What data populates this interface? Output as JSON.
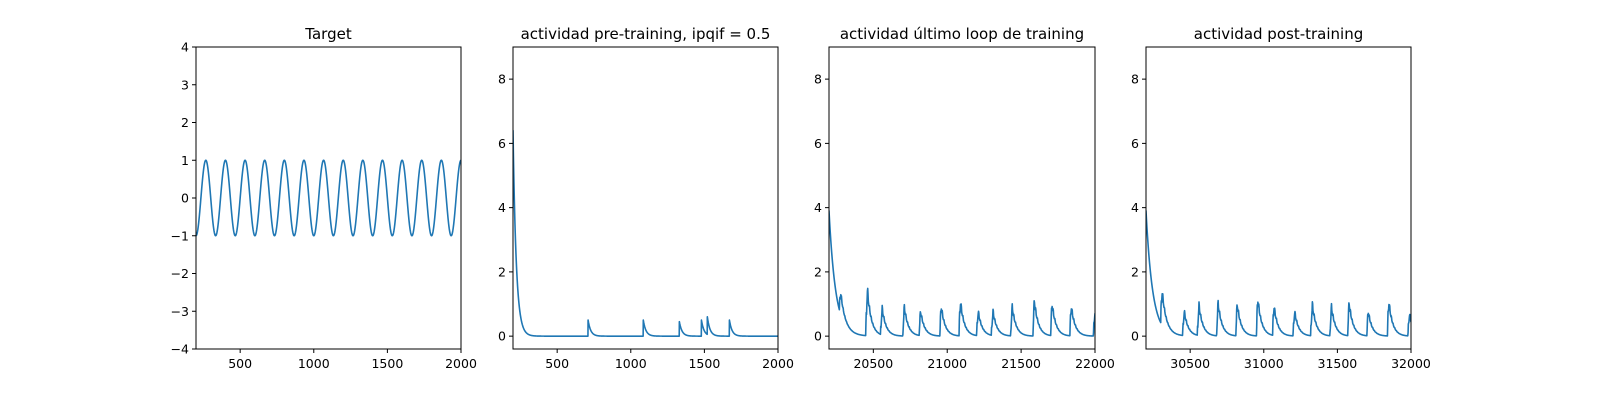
{
  "chart_data": [
    {
      "type": "line",
      "title": "Target",
      "xlim": [
        200,
        2000
      ],
      "ylim": [
        -4,
        4
      ],
      "xticks": [
        500,
        1000,
        1500,
        2000
      ],
      "yticks": [
        -4,
        -3,
        -2,
        -1,
        0,
        1,
        2,
        3,
        4
      ],
      "series": [
        {
          "kind": "sine",
          "amplitude": 1.0,
          "period": 133.33,
          "x_start": 200,
          "x_end": 2000,
          "y_at_start": -1.0
        }
      ]
    },
    {
      "type": "line",
      "title": "actividad pre-training, ipqif = 0.5",
      "xlim": [
        200,
        2000
      ],
      "ylim": [
        -0.4,
        9
      ],
      "xticks": [
        500,
        1000,
        1500,
        2000
      ],
      "yticks": [
        0,
        2,
        4,
        6,
        8
      ],
      "series": [
        {
          "kind": "spikes",
          "x_start": 200,
          "x_end": 2000,
          "initial_value": 6.4,
          "initial_decay": 22,
          "baseline": 0.0,
          "spike_decay": 18,
          "spikes": [
            [
              710,
              0.5
            ],
            [
              1085,
              0.5
            ],
            [
              1330,
              0.45
            ],
            [
              1480,
              0.5
            ],
            [
              1520,
              0.55
            ],
            [
              1670,
              0.5
            ]
          ]
        }
      ]
    },
    {
      "type": "line",
      "title": "actividad último loop de training",
      "xlim": [
        20200,
        22000
      ],
      "ylim": [
        -0.4,
        9
      ],
      "xticks": [
        20500,
        21000,
        21500,
        22000
      ],
      "yticks": [
        0,
        2,
        4,
        6,
        8
      ],
      "series": [
        {
          "kind": "bursts",
          "x_start": 20200,
          "x_end": 22000,
          "initial_value": 3.9,
          "initial_decay": 45,
          "baseline": 0.0,
          "decay": 28,
          "bursts": [
            [
              20270,
              0.9
            ],
            [
              20450,
              1.9
            ],
            [
              20550,
              1.1
            ],
            [
              20700,
              1.2
            ],
            [
              20810,
              1.0
            ],
            [
              20950,
              1.2
            ],
            [
              21080,
              1.4
            ],
            [
              21200,
              1.0
            ],
            [
              21300,
              1.0
            ],
            [
              21430,
              1.2
            ],
            [
              21580,
              1.45
            ],
            [
              21700,
              1.3
            ],
            [
              21830,
              1.2
            ],
            [
              21990,
              1.0
            ]
          ]
        }
      ]
    },
    {
      "type": "line",
      "title": "actividad post-training",
      "xlim": [
        30200,
        32000
      ],
      "ylim": [
        -0.4,
        9
      ],
      "xticks": [
        30500,
        31000,
        31500,
        32000
      ],
      "yticks": [
        0,
        2,
        4,
        6,
        8
      ],
      "series": [
        {
          "kind": "bursts",
          "x_start": 30200,
          "x_end": 32000,
          "initial_value": 3.9,
          "initial_decay": 45,
          "baseline": 0.0,
          "decay": 28,
          "bursts": [
            [
              30300,
              1.4
            ],
            [
              30450,
              1.0
            ],
            [
              30550,
              1.25
            ],
            [
              30680,
              1.35
            ],
            [
              30810,
              1.3
            ],
            [
              30950,
              1.5
            ],
            [
              31060,
              1.2
            ],
            [
              31200,
              1.0
            ],
            [
              31320,
              1.3
            ],
            [
              31450,
              1.2
            ],
            [
              31570,
              1.35
            ],
            [
              31700,
              1.0
            ],
            [
              31840,
              1.4
            ],
            [
              31980,
              0.9
            ]
          ]
        }
      ]
    }
  ],
  "colors": {
    "line": "#1f77b4",
    "axis": "#000000",
    "background": "#ffffff"
  }
}
